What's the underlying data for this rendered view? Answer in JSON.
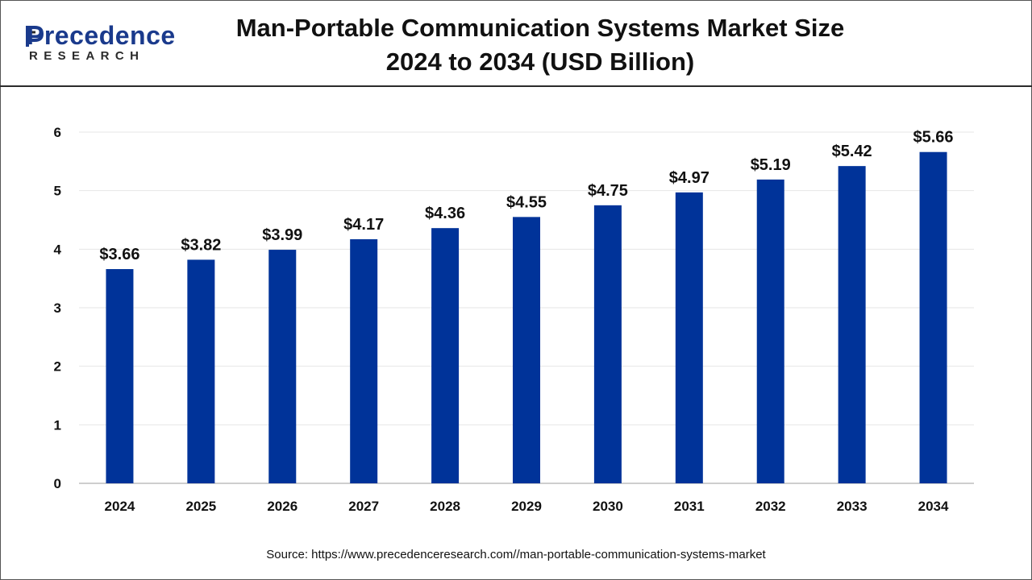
{
  "header": {
    "logo_word": "Precedence",
    "logo_sub": "RESEARCH",
    "title_line1": "Man-Portable Communication Systems Market Size",
    "title_line2": "2024 to 2034 (USD Billion)"
  },
  "colors": {
    "bar": "#003399",
    "logo_blue": "#1a3a8c",
    "grid": "#e6e6e6"
  },
  "chart_data": {
    "type": "bar",
    "categories": [
      "2024",
      "2025",
      "2026",
      "2027",
      "2028",
      "2029",
      "2030",
      "2031",
      "2032",
      "2033",
      "2034"
    ],
    "values": [
      3.66,
      3.82,
      3.99,
      4.17,
      4.36,
      4.55,
      4.75,
      4.97,
      5.19,
      5.42,
      5.66
    ],
    "data_labels": [
      "$3.66",
      "$3.82",
      "$3.99",
      "$4.17",
      "$4.36",
      "$4.55",
      "$4.75",
      "$4.97",
      "$5.19",
      "$5.42",
      "$5.66"
    ],
    "ylim": [
      0,
      6
    ],
    "yticks": [
      0,
      1,
      2,
      3,
      4,
      5,
      6
    ],
    "title": "Man-Portable Communication Systems Market Size 2024 to 2034 (USD Billion)",
    "xlabel": "",
    "ylabel": "",
    "grid": true,
    "legend": "none"
  },
  "footer": {
    "source": "Source: https://www.precedenceresearch.com//man-portable-communication-systems-market"
  }
}
